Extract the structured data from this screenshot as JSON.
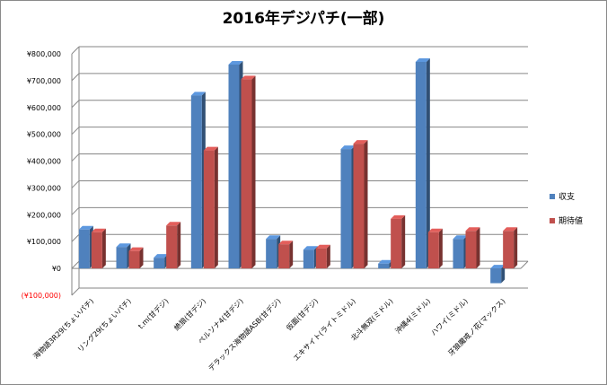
{
  "chart_data": {
    "type": "bar",
    "title": "2016年デジパチ(一部)",
    "xlabel": "",
    "ylabel": "",
    "categories": [
      "海物語3R29(ちょいパチ)",
      "リング29(ちょいパチ)",
      "t.m(甘デジ)",
      "絶狼(甘デジ)",
      "ペルソナ4(甘デジ)",
      "デラックス海物語ASB(甘デジ)",
      "仮面(甘デジ)",
      "エキサイト(ライトミドル)",
      "北斗無双(ミドル)",
      "沖縄4(ミドル)",
      "ハワイ(ミドル)",
      "牙狼魔戒ノ花(マックス)"
    ],
    "series": [
      {
        "name": "収支",
        "color": "#4f81bd",
        "values": [
          145000,
          80000,
          40000,
          645000,
          760000,
          110000,
          70000,
          445000,
          18000,
          770000,
          110000,
          -55000
        ]
      },
      {
        "name": "期待値",
        "color": "#c0504d",
        "values": [
          135000,
          65000,
          160000,
          440000,
          705000,
          90000,
          75000,
          465000,
          185000,
          135000,
          140000,
          140000
        ]
      }
    ],
    "ylim": [
      -100000,
      800000
    ],
    "yticks": [
      -100000,
      0,
      100000,
      200000,
      300000,
      400000,
      500000,
      600000,
      700000,
      800000
    ],
    "ytick_labels": [
      "(¥100,000)",
      "¥0",
      "¥100,000",
      "¥200,000",
      "¥300,000",
      "¥400,000",
      "¥500,000",
      "¥600,000",
      "¥700,000",
      "¥800,000"
    ],
    "negative_label_color": "#ff0000",
    "grid": true,
    "legend_position": "right",
    "style": "3d-clustered-column"
  }
}
